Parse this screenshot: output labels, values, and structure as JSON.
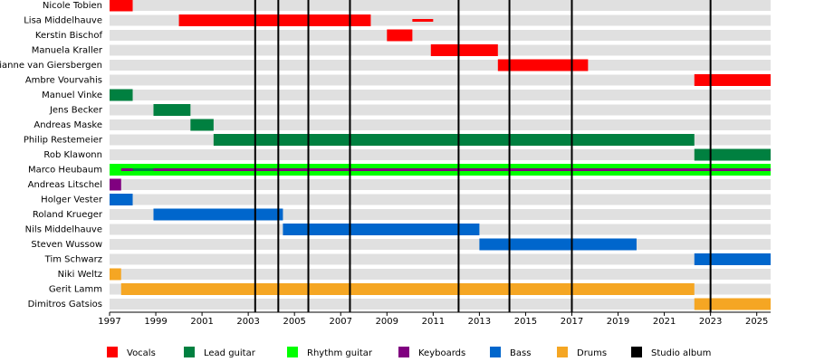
{
  "chart_data": {
    "type": "timeline",
    "roles": [
      {
        "name": "Vocals",
        "color": "#ff0000"
      },
      {
        "name": "Lead guitar",
        "color": "#008040"
      },
      {
        "name": "Rhythm guitar",
        "color": "#00ff00"
      },
      {
        "name": "Keyboards",
        "color": "#800080"
      },
      {
        "name": "Bass",
        "color": "#0066cc"
      },
      {
        "name": "Drums",
        "color": "#f5a623"
      },
      {
        "name": "Studio album",
        "color": "#000000"
      }
    ],
    "members": [
      {
        "name": "Nicole Tobien",
        "periods": [
          {
            "role": "Vocals",
            "start": 1997,
            "end": 1998
          }
        ]
      },
      {
        "name": "Lisa Middelhauve",
        "periods": [
          {
            "role": "Vocals",
            "start": 2000,
            "end": 2008.3
          },
          {
            "role": "Vocals",
            "start": 2010.1,
            "end": 2011
          }
        ]
      },
      {
        "name": "Kerstin Bischof",
        "periods": [
          {
            "role": "Vocals",
            "start": 2009,
            "end": 2010.1
          }
        ]
      },
      {
        "name": "Manuela Kraller",
        "periods": [
          {
            "role": "Vocals",
            "start": 2010.9,
            "end": 2013.8
          }
        ]
      },
      {
        "name": "Dianne van Giersbergen",
        "periods": [
          {
            "role": "Vocals",
            "start": 2013.8,
            "end": 2017.7
          }
        ]
      },
      {
        "name": "Ambre Vourvahis",
        "periods": [
          {
            "role": "Vocals",
            "start": 2022.3,
            "end": 2025.6
          }
        ]
      },
      {
        "name": "Manuel Vinke",
        "periods": [
          {
            "role": "Lead guitar",
            "start": 1997,
            "end": 1998
          }
        ]
      },
      {
        "name": "Jens Becker",
        "periods": [
          {
            "role": "Lead guitar",
            "start": 1998.9,
            "end": 2000.5
          }
        ]
      },
      {
        "name": "Andreas Maske",
        "periods": [
          {
            "role": "Lead guitar",
            "start": 2000.5,
            "end": 2001.5
          }
        ]
      },
      {
        "name": "Philip Restemeier",
        "periods": [
          {
            "role": "Lead guitar",
            "start": 2001.5,
            "end": 2022.3
          }
        ]
      },
      {
        "name": "Rob Klawonn",
        "periods": [
          {
            "role": "Lead guitar",
            "start": 2022.3,
            "end": 2025.6
          }
        ]
      },
      {
        "name": "Marco Heubaum",
        "periods": [
          {
            "role": "Rhythm guitar",
            "start": 1997,
            "end": 2025.6
          },
          {
            "role": "Keyboards",
            "start": 1997.5,
            "end": 2025.6
          },
          {
            "role": "Lead guitar",
            "start": 1998,
            "end": 1998.9
          }
        ]
      },
      {
        "name": "Andreas Litschel",
        "periods": [
          {
            "role": "Keyboards",
            "start": 1997,
            "end": 1997.5
          }
        ]
      },
      {
        "name": "Holger Vester",
        "periods": [
          {
            "role": "Bass",
            "start": 1997,
            "end": 1998
          }
        ]
      },
      {
        "name": "Roland Krueger",
        "periods": [
          {
            "role": "Bass",
            "start": 1998.9,
            "end": 2004.5
          }
        ]
      },
      {
        "name": "Nils Middelhauve",
        "periods": [
          {
            "role": "Bass",
            "start": 2004.5,
            "end": 2013
          }
        ]
      },
      {
        "name": "Steven Wussow",
        "periods": [
          {
            "role": "Bass",
            "start": 2013,
            "end": 2019.8
          }
        ]
      },
      {
        "name": "Tim Schwarz",
        "periods": [
          {
            "role": "Bass",
            "start": 2022.3,
            "end": 2025.6
          }
        ]
      },
      {
        "name": "Niki Weltz",
        "periods": [
          {
            "role": "Drums",
            "start": 1997,
            "end": 1997.5
          }
        ]
      },
      {
        "name": "Gerit Lamm",
        "periods": [
          {
            "role": "Drums",
            "start": 1997.5,
            "end": 2022.3
          }
        ]
      },
      {
        "name": "Dimitros Gatsios",
        "periods": [
          {
            "role": "Drums",
            "start": 2022.3,
            "end": 2025.6
          }
        ]
      }
    ],
    "studio_albums": [
      2003.3,
      2004.3,
      2005.6,
      2007.4,
      2012.1,
      2014.3,
      2017,
      2023
    ],
    "xlim": [
      1997,
      2025.6
    ],
    "xticks": [
      1997,
      1999,
      2001,
      2003,
      2005,
      2007,
      2009,
      2011,
      2013,
      2015,
      2017,
      2019,
      2021,
      2023,
      2025
    ]
  }
}
